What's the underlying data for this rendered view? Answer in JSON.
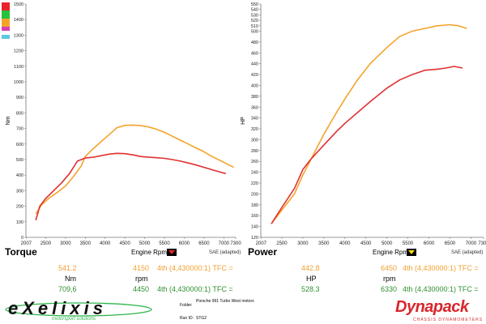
{
  "chart_data": [
    {
      "type": "line",
      "title": "Torque",
      "ylabel": "Nm",
      "xlabel": "Engine Rpm",
      "note": "SAE (adapted)",
      "xlim": [
        2000,
        7300
      ],
      "ylim": [
        0,
        1500
      ],
      "x_ticks": [
        "2007",
        "2500",
        "3000",
        "3500",
        "4000",
        "4500",
        "5000",
        "5500",
        "6000",
        "6500",
        "7000",
        "7300"
      ],
      "y_ticks": [
        "0",
        "100",
        "200",
        "300",
        "400",
        "500",
        "600",
        "700",
        "800",
        "900",
        "1000",
        "1100",
        "1200",
        "1300",
        "1400",
        "1500"
      ],
      "series": [
        {
          "color": "#f4a32a",
          "x": [
            2250,
            2400,
            2600,
            2800,
            3000,
            3200,
            3400,
            3500,
            3700,
            3900,
            4100,
            4300,
            4500,
            4700,
            4900,
            5100,
            5300,
            5500,
            5700,
            5900,
            6100,
            6300,
            6500,
            6700,
            6900,
            7100,
            7250
          ],
          "y": [
            150,
            210,
            255,
            290,
            330,
            390,
            460,
            520,
            570,
            615,
            660,
            705,
            720,
            722,
            718,
            710,
            695,
            675,
            650,
            625,
            600,
            575,
            550,
            520,
            495,
            470,
            450
          ]
        },
        {
          "color": "#e03030",
          "x": [
            2250,
            2350,
            2500,
            2700,
            2900,
            3100,
            3300,
            3500,
            3700,
            3900,
            4100,
            4300,
            4500,
            4700,
            4900,
            5100,
            5300,
            5500,
            5700,
            5900,
            6100,
            6300,
            6500,
            6700,
            6900,
            7050
          ],
          "y": [
            110,
            200,
            250,
            300,
            350,
            410,
            490,
            510,
            515,
            525,
            535,
            540,
            538,
            530,
            520,
            515,
            512,
            508,
            500,
            490,
            478,
            465,
            450,
            435,
            420,
            410
          ]
        }
      ]
    },
    {
      "type": "line",
      "title": "Power",
      "ylabel": "HP",
      "xlabel": "Engine Rpm",
      "note": "SAE (adapted)",
      "xlim": [
        2000,
        7300
      ],
      "ylim": [
        120,
        550
      ],
      "x_ticks": [
        "2007",
        "2500",
        "3000",
        "3500",
        "4000",
        "4500",
        "5000",
        "5500",
        "6000",
        "6500",
        "7000",
        "7300"
      ],
      "y_ticks": [
        "120",
        "140",
        "160",
        "180",
        "200",
        "220",
        "240",
        "260",
        "280",
        "300",
        "320",
        "340",
        "360",
        "380",
        "400",
        "420",
        "440",
        "460",
        "480",
        "500",
        "510",
        "520",
        "530",
        "540",
        "550"
      ],
      "series": [
        {
          "color": "#f4a32a",
          "x": [
            2250,
            2500,
            2800,
            3000,
            3200,
            3500,
            3800,
            4000,
            4300,
            4600,
            5000,
            5300,
            5600,
            5900,
            6200,
            6500,
            6700,
            6900
          ],
          "y": [
            145,
            170,
            200,
            235,
            265,
            310,
            350,
            375,
            410,
            440,
            470,
            490,
            500,
            505,
            510,
            512,
            510,
            505
          ]
        },
        {
          "color": "#e03030",
          "x": [
            2250,
            2500,
            2800,
            3000,
            3200,
            3500,
            3800,
            4000,
            4300,
            4600,
            5000,
            5300,
            5600,
            5900,
            6200,
            6400,
            6600,
            6800
          ],
          "y": [
            145,
            175,
            210,
            245,
            265,
            290,
            315,
            330,
            350,
            370,
            395,
            410,
            420,
            428,
            430,
            432,
            435,
            432
          ]
        }
      ]
    }
  ],
  "readout": {
    "torque": {
      "title": "Torque",
      "unit": "Nm",
      "rpm_unit": "rpm",
      "orange_value": "541.2",
      "orange_rpm": "4150",
      "orange_gear": "4th (4,430000:1) TFC =",
      "green_value": "709,6",
      "green_rpm": "4450",
      "green_gear": "4th (4,430000:1) TFC ="
    },
    "power": {
      "title": "Power",
      "unit": "HP",
      "rpm_unit": "rpm",
      "orange_value": "442.8",
      "orange_rpm": "6450",
      "orange_gear": "4th (4,430000:1) TFC =",
      "green_value": "528.3",
      "green_rpm": "6330",
      "green_gear": "4th (4,430000:1) TFC ="
    }
  },
  "legend_swatches": [
    "#e8232a",
    "#27c23a",
    "#f4a32a",
    "#d93cb3",
    "#5cc7e6"
  ],
  "footer": {
    "logo_left": "eXelixis",
    "logo_left_tagline": "motorsport solutions",
    "folder_label": "Folder:",
    "run_label": "Run ID:",
    "run_id": "STG2",
    "car": "Porsche 991 Turbo West motors",
    "logo_right": "Dynapack",
    "logo_right_tagline": "CHASSIS DYNAMOMETERS",
    "brand_color": "#d8262c"
  }
}
